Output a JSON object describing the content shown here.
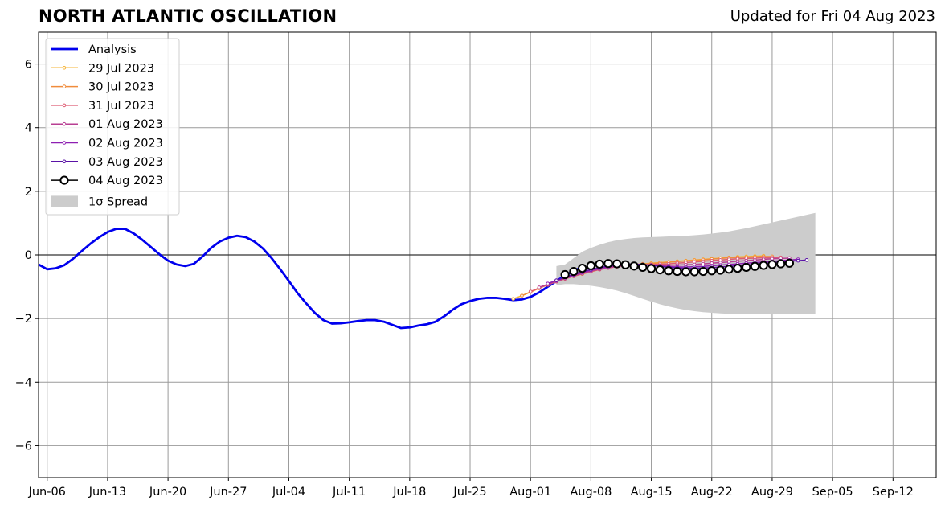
{
  "header": {
    "title": "NORTH ATLANTIC OSCILLATION",
    "updated": "Updated for Fri 04 Aug 2023"
  },
  "chart_data": {
    "type": "line",
    "title": "NORTH ATLANTIC OSCILLATION",
    "subtitle": "Updated for Fri 04 Aug 2023",
    "xlabel": "",
    "ylabel": "",
    "xlim": [
      "2023-06-05",
      "2023-09-17"
    ],
    "ylim": [
      -7,
      7
    ],
    "grid": true,
    "legend_position": "top-left",
    "x_ticks": [
      "2023-06-06",
      "2023-06-13",
      "2023-06-20",
      "2023-06-27",
      "2023-07-04",
      "2023-07-11",
      "2023-07-18",
      "2023-07-25",
      "2023-08-01",
      "2023-08-08",
      "2023-08-15",
      "2023-08-22",
      "2023-08-29",
      "2023-09-05",
      "2023-09-12"
    ],
    "x_tick_labels": [
      "Jun-06",
      "Jun-13",
      "Jun-20",
      "Jun-27",
      "Jul-04",
      "Jul-11",
      "Jul-18",
      "Jul-25",
      "Aug-01",
      "Aug-08",
      "Aug-15",
      "Aug-22",
      "Aug-29",
      "Sep-05",
      "Sep-12"
    ],
    "y_ticks": [
      -6,
      -4,
      -2,
      0,
      2,
      4,
      6
    ],
    "y_tick_labels": [
      "−6",
      "−4",
      "−2",
      "0",
      "2",
      "4",
      "6"
    ],
    "zero_line": 0,
    "series": [
      {
        "name": "Analysis",
        "color": "#0000ee",
        "style": "thick-line",
        "start": "2023-06-05",
        "values": [
          -0.3,
          -0.45,
          -0.42,
          -0.32,
          -0.12,
          0.12,
          0.35,
          0.55,
          0.72,
          0.82,
          0.82,
          0.68,
          0.48,
          0.25,
          0.02,
          -0.18,
          -0.3,
          -0.35,
          -0.28,
          -0.05,
          0.22,
          0.42,
          0.54,
          0.6,
          0.56,
          0.42,
          0.2,
          -0.1,
          -0.45,
          -0.82,
          -1.2,
          -1.52,
          -1.82,
          -2.05,
          -2.16,
          -2.15,
          -2.12,
          -2.08,
          -2.05,
          -2.05,
          -2.1,
          -2.2,
          -2.3,
          -2.28,
          -2.22,
          -2.18,
          -2.1,
          -1.93,
          -1.72,
          -1.55,
          -1.45,
          -1.38,
          -1.35,
          -1.35,
          -1.38,
          -1.42,
          -1.4,
          -1.32,
          -1.18,
          -1.0,
          -0.82,
          -0.65,
          -0.5,
          -0.38
        ]
      },
      {
        "name": "29 Jul 2023",
        "color": "#f6b53a",
        "style": "small-markers",
        "start": "2023-07-30",
        "values": [
          -1.38,
          -1.28,
          -1.16,
          -1.04,
          -0.93,
          -0.83,
          -0.74,
          -0.66,
          -0.58,
          -0.51,
          -0.45,
          -0.4,
          -0.35,
          -0.32,
          -0.3,
          -0.28,
          -0.26,
          -0.24,
          -0.22,
          -0.2,
          -0.18,
          -0.16,
          -0.14,
          -0.12,
          -0.1,
          -0.08,
          -0.06,
          -0.05,
          -0.04,
          -0.03
        ]
      },
      {
        "name": "30 Jul 2023",
        "color": "#f08c3c",
        "style": "small-markers",
        "start": "2023-07-31",
        "values": [
          -1.28,
          -1.17,
          -1.05,
          -0.94,
          -0.84,
          -0.75,
          -0.67,
          -0.6,
          -0.53,
          -0.46,
          -0.41,
          -0.36,
          -0.33,
          -0.31,
          -0.29,
          -0.27,
          -0.25,
          -0.23,
          -0.21,
          -0.19,
          -0.17,
          -0.15,
          -0.13,
          -0.11,
          -0.09,
          -0.08,
          -0.07,
          -0.06,
          -0.05,
          -0.05
        ]
      },
      {
        "name": "31 Jul 2023",
        "color": "#de5c73",
        "style": "small-markers",
        "start": "2023-08-01",
        "values": [
          -1.15,
          -1.04,
          -0.94,
          -0.84,
          -0.75,
          -0.67,
          -0.59,
          -0.52,
          -0.46,
          -0.41,
          -0.37,
          -0.34,
          -0.32,
          -0.31,
          -0.3,
          -0.29,
          -0.28,
          -0.26,
          -0.24,
          -0.22,
          -0.2,
          -0.18,
          -0.16,
          -0.14,
          -0.12,
          -0.11,
          -0.1,
          -0.09,
          -0.09,
          -0.08
        ]
      },
      {
        "name": "01 Aug 2023",
        "color": "#b83f93",
        "style": "small-markers",
        "start": "2023-08-02",
        "values": [
          -1.02,
          -0.92,
          -0.83,
          -0.74,
          -0.66,
          -0.58,
          -0.51,
          -0.45,
          -0.4,
          -0.36,
          -0.33,
          -0.31,
          -0.31,
          -0.32,
          -0.33,
          -0.33,
          -0.32,
          -0.31,
          -0.3,
          -0.28,
          -0.26,
          -0.24,
          -0.22,
          -0.2,
          -0.18,
          -0.16,
          -0.14,
          -0.12,
          -0.11,
          -0.1
        ]
      },
      {
        "name": "02 Aug 2023",
        "color": "#8e1fb2",
        "style": "small-markers",
        "start": "2023-08-03",
        "values": [
          -0.9,
          -0.8,
          -0.71,
          -0.63,
          -0.55,
          -0.48,
          -0.42,
          -0.37,
          -0.33,
          -0.31,
          -0.3,
          -0.31,
          -0.33,
          -0.35,
          -0.37,
          -0.38,
          -0.38,
          -0.37,
          -0.36,
          -0.34,
          -0.32,
          -0.3,
          -0.28,
          -0.26,
          -0.24,
          -0.22,
          -0.2,
          -0.18,
          -0.16,
          -0.14
        ]
      },
      {
        "name": "03 Aug 2023",
        "color": "#5a12a6",
        "style": "small-markers",
        "start": "2023-08-04",
        "values": [
          -0.8,
          -0.7,
          -0.61,
          -0.53,
          -0.46,
          -0.4,
          -0.35,
          -0.31,
          -0.29,
          -0.29,
          -0.3,
          -0.33,
          -0.36,
          -0.39,
          -0.41,
          -0.42,
          -0.42,
          -0.41,
          -0.4,
          -0.38,
          -0.36,
          -0.34,
          -0.32,
          -0.29,
          -0.27,
          -0.24,
          -0.22,
          -0.2,
          -0.18,
          -0.16
        ]
      },
      {
        "name": "04 Aug 2023",
        "color": "#000000",
        "style": "open-circles",
        "start": "2023-08-05",
        "values": [
          -0.62,
          -0.52,
          -0.42,
          -0.34,
          -0.29,
          -0.27,
          -0.28,
          -0.31,
          -0.35,
          -0.39,
          -0.43,
          -0.47,
          -0.5,
          -0.52,
          -0.53,
          -0.53,
          -0.52,
          -0.5,
          -0.48,
          -0.45,
          -0.42,
          -0.39,
          -0.36,
          -0.33,
          -0.3,
          -0.28,
          -0.26
        ]
      }
    ],
    "spread": {
      "name": "1σ Spread",
      "color": "#cccccc",
      "start": "2023-08-04",
      "upper": [
        -0.35,
        -0.3,
        -0.1,
        0.1,
        0.22,
        0.32,
        0.4,
        0.46,
        0.5,
        0.53,
        0.55,
        0.56,
        0.57,
        0.58,
        0.59,
        0.6,
        0.62,
        0.64,
        0.67,
        0.7,
        0.74,
        0.79,
        0.84,
        0.9,
        0.96,
        1.02,
        1.08,
        1.14,
        1.2,
        1.26,
        1.32
      ],
      "lower": [
        -0.95,
        -0.92,
        -0.92,
        -0.94,
        -0.97,
        -1.01,
        -1.06,
        -1.12,
        -1.2,
        -1.29,
        -1.38,
        -1.47,
        -1.55,
        -1.62,
        -1.68,
        -1.73,
        -1.77,
        -1.8,
        -1.82,
        -1.84,
        -1.85,
        -1.86,
        -1.86,
        -1.86,
        -1.86,
        -1.86,
        -1.86,
        -1.86,
        -1.86,
        -1.86,
        -1.86
      ]
    }
  }
}
